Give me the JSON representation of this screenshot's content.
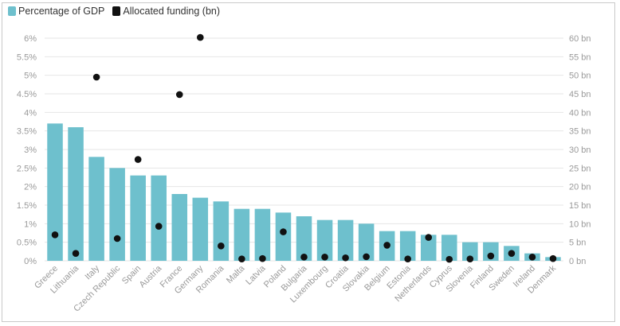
{
  "colors": {
    "bar": "#6ec0cd",
    "dot": "#111111",
    "grid": "#e6e6e6"
  },
  "chart_data": {
    "type": "bar",
    "categories": [
      "Greece",
      "Lithuania",
      "Italy",
      "Czech Republic",
      "Spain",
      "Austria",
      "France",
      "Germany",
      "Romania",
      "Malta",
      "Latvia",
      "Poland",
      "Bulgaria",
      "Luxembourg",
      "Croatia",
      "Slovakia",
      "Belgium",
      "Estonia",
      "Netherlands",
      "Cyprus",
      "Slovenia",
      "Finland",
      "Sweden",
      "Ireland",
      "Denmark"
    ],
    "series": [
      {
        "name": "Percentage of GDP",
        "kind": "bar",
        "axis": "left",
        "values": [
          3.7,
          3.6,
          2.8,
          2.5,
          2.3,
          2.3,
          1.8,
          1.7,
          1.6,
          1.4,
          1.4,
          1.3,
          1.2,
          1.1,
          1.1,
          1.0,
          0.8,
          0.8,
          0.7,
          0.7,
          0.5,
          0.5,
          0.4,
          0.2,
          0.1
        ]
      },
      {
        "name": "Allocated funding (bn)",
        "kind": "scatter",
        "axis": "right",
        "values": [
          7,
          2,
          49.5,
          6,
          27.3,
          9.3,
          44.8,
          60.2,
          4,
          0.5,
          0.6,
          7.8,
          1,
          1,
          0.8,
          1.1,
          4.2,
          0.5,
          6.3,
          0.4,
          0.5,
          1.3,
          2,
          1,
          0.6
        ]
      }
    ],
    "y_left": {
      "ylim": [
        0,
        6
      ],
      "ticks": [
        0,
        0.5,
        1,
        1.5,
        2,
        2.5,
        3,
        3.5,
        4,
        4.5,
        5,
        5.5,
        6
      ],
      "tick_labels": [
        "0%",
        "0.5%",
        "1%",
        "1.5%",
        "2%",
        "2.5%",
        "3%",
        "3.5%",
        "4%",
        "4.5%",
        "5%",
        "5.5%",
        "6%"
      ]
    },
    "y_right": {
      "ylim": [
        0,
        60
      ],
      "ticks": [
        0,
        5,
        10,
        15,
        20,
        25,
        30,
        35,
        40,
        45,
        50,
        55,
        60
      ],
      "tick_labels": [
        "0 bn",
        "5 bn",
        "10 bn",
        "15 bn",
        "20 bn",
        "25 bn",
        "30 bn",
        "35 bn",
        "40 bn",
        "45 bn",
        "50 bn",
        "55 bn",
        "60 bn"
      ]
    },
    "grid": true,
    "legend_position": "top-left",
    "xlabel": "",
    "ylabel": ""
  }
}
